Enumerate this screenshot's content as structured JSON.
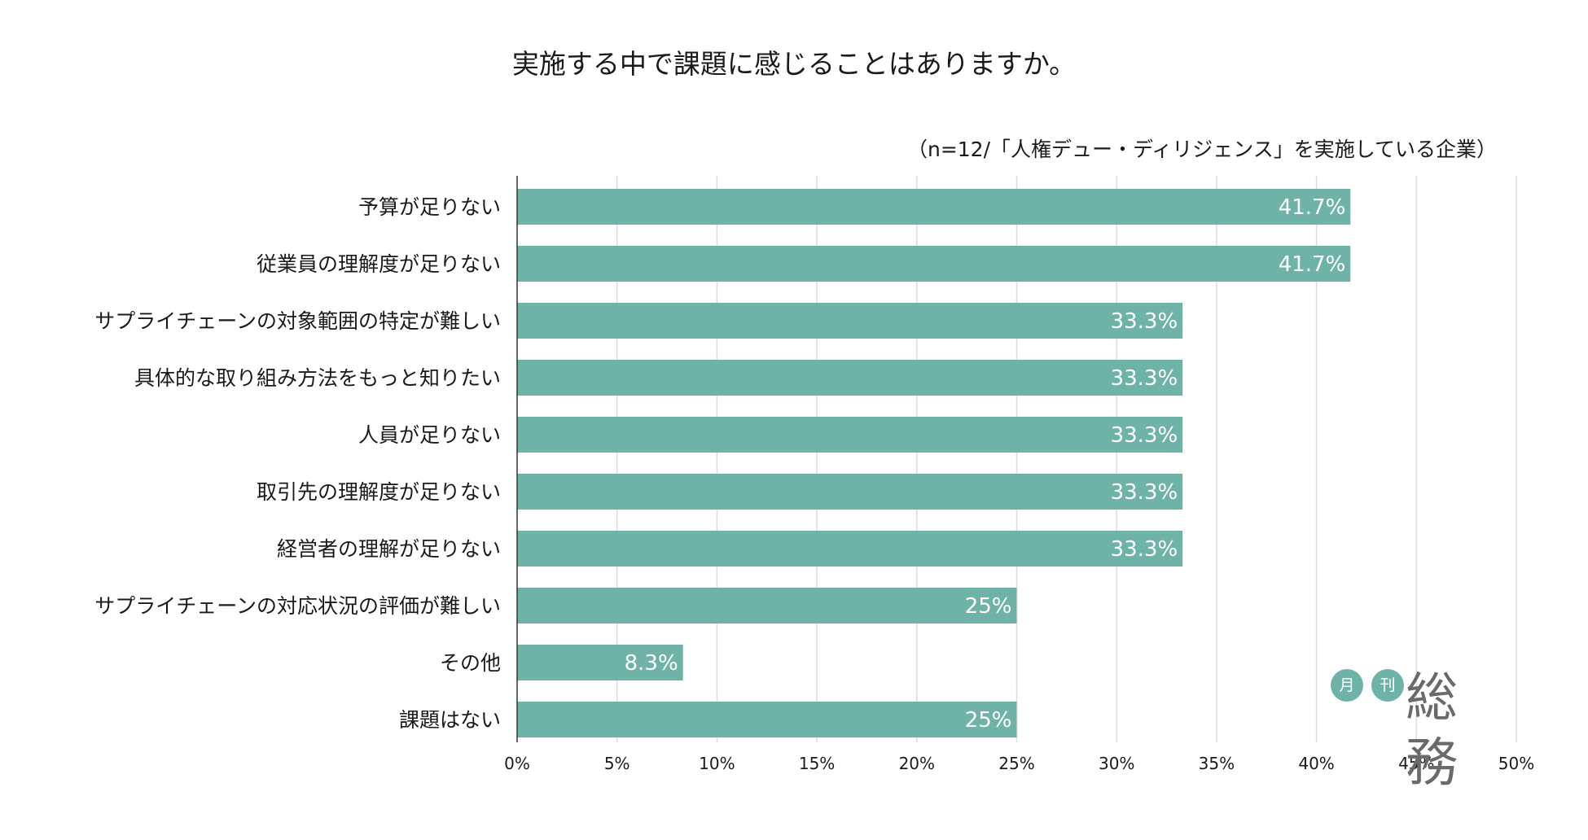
{
  "chart_data": {
    "type": "bar",
    "orientation": "horizontal",
    "title": "実施する中で課題に感じることはありますか。",
    "subtitle": "（n=12/「人権デュー・ディリジェンス」を実施している企業）",
    "categories": [
      "予算が足りない",
      "従業員の理解度が足りない",
      "サプライチェーンの対象範囲の特定が難しい",
      "具体的な取り組み方法をもっと知りたい",
      "人員が足りない",
      "取引先の理解度が足りない",
      "経営者の理解が足りない",
      "サプライチェーンの対応状況の評価が難しい",
      "その他",
      "課題はない"
    ],
    "values": [
      41.7,
      41.7,
      33.3,
      33.3,
      33.3,
      33.3,
      33.3,
      25,
      8.3,
      25
    ],
    "value_labels": [
      "41.7%",
      "41.7%",
      "33.3%",
      "33.3%",
      "33.3%",
      "33.3%",
      "33.3%",
      "25%",
      "8.3%",
      "25%"
    ],
    "xlim": [
      0,
      50
    ],
    "xticks": [
      "0%",
      "5%",
      "10%",
      "15%",
      "20%",
      "25%",
      "30%",
      "35%",
      "40%",
      "45%",
      "50%"
    ],
    "grid": true,
    "bar_color": "#6fb3a8",
    "grid_color": "#dcdcdc",
    "axis_color": "#333333"
  },
  "logo": {
    "dot1": "月",
    "dot2": "刊",
    "main": "総務"
  }
}
